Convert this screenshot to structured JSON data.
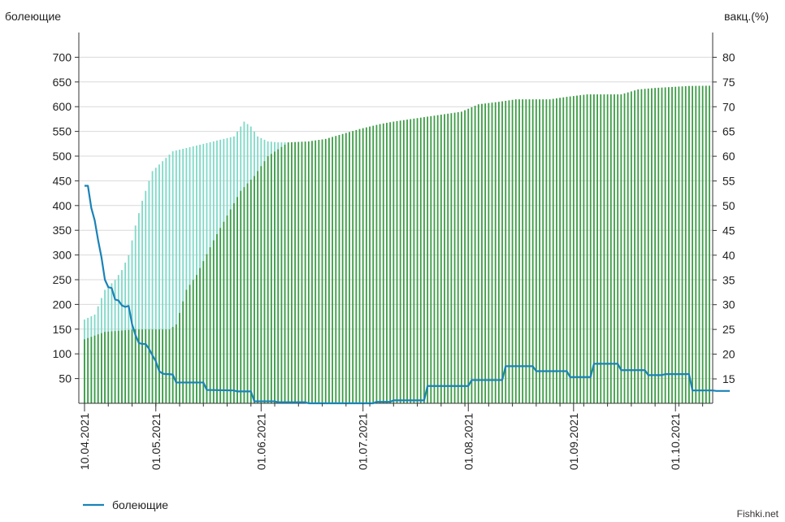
{
  "chart_data": {
    "type": "bar+line",
    "left_axis_title": "болеющие",
    "right_axis_title": "вакц.(%)",
    "left_ylim": [
      0,
      750
    ],
    "left_ticks": [
      "50",
      "100",
      "150",
      "200",
      "250",
      "300",
      "350",
      "400",
      "450",
      "500",
      "550",
      "600",
      "650",
      "700"
    ],
    "right_ylim": [
      10.07,
      85
    ],
    "right_ticks": [
      "15",
      "20",
      "25",
      "30",
      "35",
      "40",
      "45",
      "50",
      "55",
      "60",
      "65",
      "70",
      "75",
      "80"
    ],
    "x_start_date": "2021-04-10",
    "x_end_date": "2021-10-11",
    "x_tick_labels": [
      {
        "date": "2021-04-10",
        "label": "10.04.2021"
      },
      {
        "date": "2021-05-01",
        "label": "01.05.2021"
      },
      {
        "date": "2021-06-01",
        "label": "01.06.2021"
      },
      {
        "date": "2021-07-01",
        "label": "01.07.2021"
      },
      {
        "date": "2021-08-01",
        "label": "01.08.2021"
      },
      {
        "date": "2021-09-01",
        "label": "01.09.2021"
      },
      {
        "date": "2021-10-01",
        "label": "01.10.2021"
      }
    ],
    "grid": true,
    "legend_position": "bottom-left",
    "colors": {
      "line": "#1a82b8",
      "bar_dark": "#3c9c45",
      "bar_light": "#7fd9c8",
      "grid": "#d9d9d9",
      "axis": "#333333"
    },
    "series": [
      {
        "name": "болеющие",
        "axis": "left",
        "type": "line",
        "points": [
          [
            "2021-04-10",
            440
          ],
          [
            "2021-04-11",
            440
          ],
          [
            "2021-04-12",
            395
          ],
          [
            "2021-04-13",
            370
          ],
          [
            "2021-04-14",
            330
          ],
          [
            "2021-04-15",
            295
          ],
          [
            "2021-04-16",
            250
          ],
          [
            "2021-04-17",
            235
          ],
          [
            "2021-04-18",
            233
          ],
          [
            "2021-04-19",
            210
          ],
          [
            "2021-04-20",
            208
          ],
          [
            "2021-04-21",
            198
          ],
          [
            "2021-04-22",
            195
          ],
          [
            "2021-04-23",
            197
          ],
          [
            "2021-04-24",
            160
          ],
          [
            "2021-04-25",
            138
          ],
          [
            "2021-04-26",
            122
          ],
          [
            "2021-04-27",
            120
          ],
          [
            "2021-04-28",
            120
          ],
          [
            "2021-04-29",
            110
          ],
          [
            "2021-04-30",
            97
          ],
          [
            "2021-05-01",
            85
          ],
          [
            "2021-05-02",
            65
          ],
          [
            "2021-05-03",
            60
          ],
          [
            "2021-05-04",
            59
          ],
          [
            "2021-05-05",
            59
          ],
          [
            "2021-05-06",
            58
          ],
          [
            "2021-05-07",
            42
          ],
          [
            "2021-05-15",
            42
          ],
          [
            "2021-05-16",
            27
          ],
          [
            "2021-05-24",
            26
          ],
          [
            "2021-05-25",
            24
          ],
          [
            "2021-05-29",
            24
          ],
          [
            "2021-05-30",
            4
          ],
          [
            "2021-06-05",
            4
          ],
          [
            "2021-06-06",
            2
          ],
          [
            "2021-06-14",
            2
          ],
          [
            "2021-06-15",
            0
          ],
          [
            "2021-07-01",
            0
          ],
          [
            "2021-07-04",
            0
          ],
          [
            "2021-07-05",
            3
          ],
          [
            "2021-07-09",
            3
          ],
          [
            "2021-07-10",
            6
          ],
          [
            "2021-07-19",
            6
          ],
          [
            "2021-07-20",
            35
          ],
          [
            "2021-07-30",
            35
          ],
          [
            "2021-08-01",
            35
          ],
          [
            "2021-08-02",
            47
          ],
          [
            "2021-08-11",
            47
          ],
          [
            "2021-08-12",
            75
          ],
          [
            "2021-08-20",
            75
          ],
          [
            "2021-08-21",
            65
          ],
          [
            "2021-08-30",
            65
          ],
          [
            "2021-08-31",
            53
          ],
          [
            "2021-09-06",
            53
          ],
          [
            "2021-09-07",
            80
          ],
          [
            "2021-09-14",
            80
          ],
          [
            "2021-09-15",
            67
          ],
          [
            "2021-09-22",
            67
          ],
          [
            "2021-09-23",
            57
          ],
          [
            "2021-09-27",
            57
          ],
          [
            "2021-09-28",
            59
          ],
          [
            "2021-10-05",
            59
          ],
          [
            "2021-10-06",
            26
          ],
          [
            "2021-10-12",
            26
          ],
          [
            "2021-10-13",
            25
          ],
          [
            "2021-10-17",
            25
          ]
        ]
      },
      {
        "name": "",
        "axis": "right",
        "type": "bar-overlay",
        "style": "light",
        "points": [
          [
            "2021-04-10",
            27
          ],
          [
            "2021-04-13",
            28
          ],
          [
            "2021-04-16",
            33
          ],
          [
            "2021-04-19",
            35
          ],
          [
            "2021-04-21",
            37
          ],
          [
            "2021-04-23",
            40
          ],
          [
            "2021-04-25",
            46
          ],
          [
            "2021-04-27",
            51
          ],
          [
            "2021-04-30",
            57
          ],
          [
            "2021-05-03",
            59
          ],
          [
            "2021-05-06",
            61
          ],
          [
            "2021-05-09",
            61.5
          ],
          [
            "2021-05-12",
            62
          ],
          [
            "2021-05-15",
            62.5
          ],
          [
            "2021-05-18",
            63
          ],
          [
            "2021-05-21",
            63.5
          ],
          [
            "2021-05-24",
            64
          ],
          [
            "2021-05-27",
            67
          ],
          [
            "2021-05-29",
            66
          ],
          [
            "2021-05-31",
            64
          ],
          [
            "2021-06-03",
            63
          ],
          [
            "2021-06-06",
            62.8
          ],
          [
            "2021-06-08",
            62.8
          ]
        ]
      },
      {
        "name": "",
        "axis": "right",
        "type": "bar",
        "style": "dark",
        "points": [
          [
            "2021-04-10",
            23
          ],
          [
            "2021-04-16",
            24.5
          ],
          [
            "2021-04-25",
            25
          ],
          [
            "2021-05-05",
            25
          ],
          [
            "2021-05-07",
            26
          ],
          [
            "2021-05-10",
            33
          ],
          [
            "2021-05-13",
            36
          ],
          [
            "2021-05-18",
            43
          ],
          [
            "2021-05-22",
            48
          ],
          [
            "2021-05-26",
            53
          ],
          [
            "2021-05-30",
            56
          ],
          [
            "2021-06-03",
            60
          ],
          [
            "2021-06-09",
            62.8
          ],
          [
            "2021-06-15",
            63
          ],
          [
            "2021-06-20",
            63.5
          ],
          [
            "2021-06-25",
            64.5
          ],
          [
            "2021-06-30",
            65.5
          ],
          [
            "2021-07-03",
            66
          ],
          [
            "2021-07-06",
            66.5
          ],
          [
            "2021-07-10",
            67
          ],
          [
            "2021-07-15",
            67.5
          ],
          [
            "2021-07-20",
            68
          ],
          [
            "2021-07-25",
            68.5
          ],
          [
            "2021-07-30",
            69
          ],
          [
            "2021-08-04",
            70.5
          ],
          [
            "2021-08-10",
            71
          ],
          [
            "2021-08-15",
            71.5
          ],
          [
            "2021-08-20",
            71.5
          ],
          [
            "2021-08-25",
            71.5
          ],
          [
            "2021-08-30",
            72
          ],
          [
            "2021-09-05",
            72.5
          ],
          [
            "2021-09-10",
            72.5
          ],
          [
            "2021-09-15",
            72.5
          ],
          [
            "2021-09-20",
            73.5
          ],
          [
            "2021-09-25",
            73.8
          ],
          [
            "2021-09-30",
            74
          ],
          [
            "2021-10-05",
            74.2
          ],
          [
            "2021-10-17",
            74.3
          ]
        ]
      }
    ]
  },
  "legend": {
    "line_label": "болеющие"
  },
  "watermark": "Fishki.net"
}
